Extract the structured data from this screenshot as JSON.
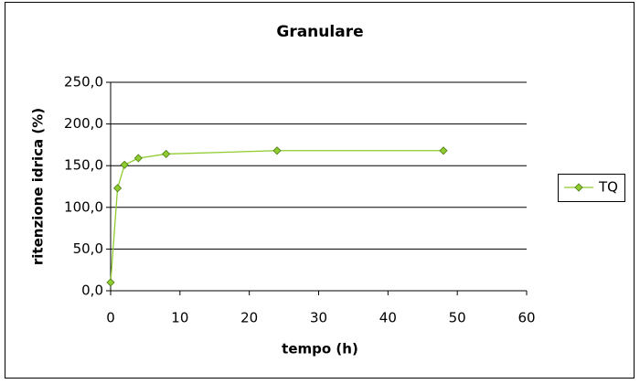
{
  "chart_data": {
    "type": "line",
    "title": "Granulare",
    "x_label": "tempo (h)",
    "y_label": "ritenzione idrica (%)",
    "x": [
      0,
      1,
      2,
      4,
      8,
      24,
      48
    ],
    "series": [
      {
        "name": "TQ",
        "color": "#8fcc2f",
        "values": [
          10,
          123,
          151,
          159,
          164,
          168,
          168
        ]
      }
    ],
    "xlim": [
      0,
      60
    ],
    "xticks": [
      0,
      10,
      20,
      30,
      40,
      50,
      60
    ],
    "ylim": [
      0,
      250
    ],
    "yticks": [
      {
        "value": 0,
        "label": "0,0"
      },
      {
        "value": 50,
        "label": "50,0"
      },
      {
        "value": 100,
        "label": "100,0"
      },
      {
        "value": 150,
        "label": "150,0"
      },
      {
        "value": 200,
        "label": "200,0"
      },
      {
        "value": 250,
        "label": "250,0"
      }
    ],
    "grid": true,
    "legend": "right"
  }
}
